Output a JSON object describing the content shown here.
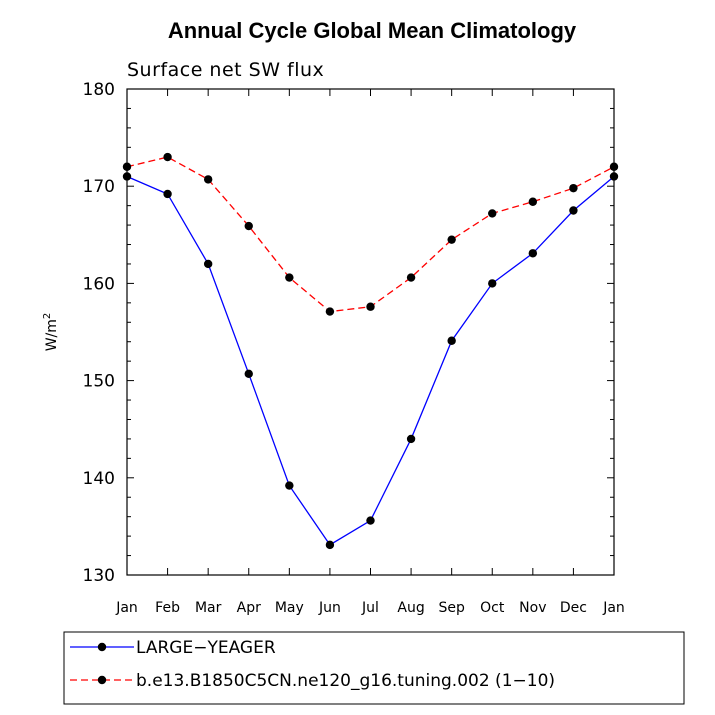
{
  "chart_data": {
    "type": "line",
    "title": "Annual Cycle Global Mean Climatology",
    "subtitle": "Surface net SW flux",
    "xlabel": "",
    "ylabel": "W/m",
    "ylabel_superscript": "2",
    "categories": [
      "Jan",
      "Feb",
      "Mar",
      "Apr",
      "May",
      "Jun",
      "Jul",
      "Aug",
      "Sep",
      "Oct",
      "Nov",
      "Dec",
      "Jan"
    ],
    "ylim": [
      130,
      180
    ],
    "yticks": [
      130,
      140,
      150,
      160,
      170,
      180
    ],
    "series": [
      {
        "name": "LARGE−YEAGER",
        "color": "#0000ff",
        "dash": "solid",
        "values": [
          171.0,
          169.2,
          162.0,
          150.7,
          139.2,
          133.1,
          135.6,
          144.0,
          154.1,
          160.0,
          163.1,
          167.5,
          171.0
        ]
      },
      {
        "name": "b.e13.B1850C5CN.ne120_g16.tuning.002 (1−10)",
        "color": "#ff0000",
        "dash": "dashed",
        "values": [
          172.0,
          173.0,
          170.7,
          165.9,
          160.6,
          157.1,
          157.6,
          160.6,
          164.5,
          167.2,
          168.4,
          169.8,
          172.0
        ]
      }
    ],
    "legend_position": "bottom"
  }
}
